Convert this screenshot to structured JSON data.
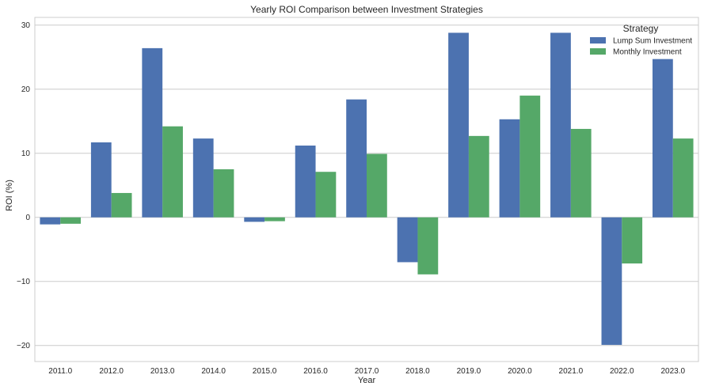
{
  "chart_data": {
    "type": "bar",
    "title": "Yearly ROI Comparison between Investment Strategies",
    "xlabel": "Year",
    "ylabel": "ROI (%)",
    "ylim": [
      -22.5,
      31.2
    ],
    "yticks": [
      -20,
      -10,
      0,
      10,
      20,
      30
    ],
    "ytick_labels": [
      "−20",
      "−10",
      "0",
      "10",
      "20",
      "30"
    ],
    "grid": true,
    "legend": {
      "title": "Strategy",
      "placement": "top-right"
    },
    "categories": [
      "2011.0",
      "2012.0",
      "2013.0",
      "2014.0",
      "2015.0",
      "2016.0",
      "2017.0",
      "2018.0",
      "2019.0",
      "2020.0",
      "2021.0",
      "2022.0",
      "2023.0"
    ],
    "series": [
      {
        "name": "Lump Sum Investment",
        "color": "#4c72b0",
        "values": [
          -1.1,
          11.7,
          26.4,
          12.3,
          -0.7,
          11.2,
          18.4,
          -7.0,
          28.8,
          15.3,
          28.8,
          -19.9,
          24.7
        ]
      },
      {
        "name": "Monthly Investment",
        "color": "#55a868",
        "values": [
          -1.0,
          3.8,
          14.2,
          7.5,
          -0.6,
          7.1,
          9.9,
          -8.9,
          12.7,
          19.0,
          13.8,
          -7.2,
          12.3
        ]
      }
    ]
  }
}
